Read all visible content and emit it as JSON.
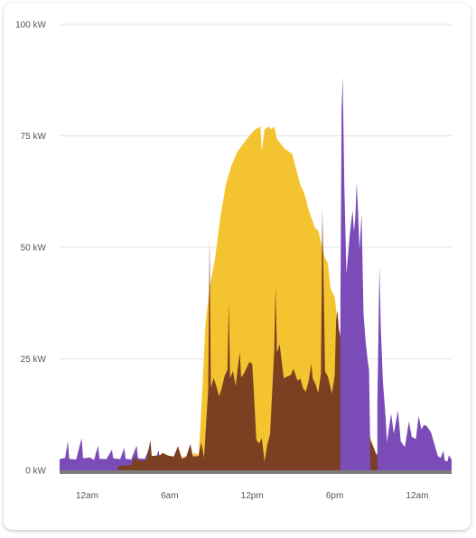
{
  "chart_data": {
    "type": "area",
    "title": "",
    "xlabel": "",
    "ylabel": "",
    "unit": "kW",
    "ylim": [
      0,
      100
    ],
    "xlim": [
      -2.0,
      26.5
    ],
    "x_unit": "hours (0 = first midnight shown)",
    "grid": true,
    "legend": "none",
    "y_ticks": [
      {
        "value": 0,
        "label": "0 kW"
      },
      {
        "value": 25,
        "label": "25 kW"
      },
      {
        "value": 50,
        "label": "50 kW"
      },
      {
        "value": 75,
        "label": "75 kW"
      },
      {
        "value": 100,
        "label": "100 kW"
      }
    ],
    "x_ticks": [
      {
        "value": 0,
        "label": "12am"
      },
      {
        "value": 6,
        "label": "6am"
      },
      {
        "value": 12,
        "label": "12pm"
      },
      {
        "value": 18,
        "label": "6pm"
      },
      {
        "value": 24,
        "label": "12am"
      }
    ],
    "series": [
      {
        "color": "#7b4bb8",
        "points": [
          [
            -2.0,
            2.5
          ],
          [
            -1.6,
            2.8
          ],
          [
            -1.4,
            6.5
          ],
          [
            -1.3,
            2.6
          ],
          [
            -0.8,
            2.4
          ],
          [
            -0.4,
            7.2
          ],
          [
            -0.3,
            2.7
          ],
          [
            0.2,
            2.9
          ],
          [
            0.5,
            2.3
          ],
          [
            0.8,
            5.5
          ],
          [
            0.9,
            2.6
          ],
          [
            1.4,
            2.5
          ],
          [
            1.8,
            4.6
          ],
          [
            1.9,
            2.7
          ],
          [
            2.4,
            2.5
          ],
          [
            2.7,
            5.0
          ],
          [
            2.8,
            2.6
          ],
          [
            3.2,
            2.4
          ],
          [
            3.6,
            5.5
          ],
          [
            3.7,
            2.7
          ],
          [
            4.2,
            2.6
          ],
          [
            4.5,
            4.8
          ],
          [
            4.6,
            2.5
          ],
          [
            5.0,
            2.7
          ],
          [
            5.2,
            4.5
          ],
          [
            5.3,
            2.3
          ],
          [
            5.6,
            2.2
          ],
          [
            6.0,
            0
          ],
          [
            20.2,
            0
          ],
          [
            20.9,
            2.2
          ],
          [
            21.3,
            5.3
          ],
          [
            21.5,
            4.0
          ],
          [
            21.8,
            6.3
          ],
          [
            22.1,
            12.7
          ],
          [
            22.3,
            8.2
          ],
          [
            22.6,
            13.4
          ],
          [
            22.8,
            6.5
          ],
          [
            23.1,
            5.2
          ],
          [
            23.4,
            11.0
          ],
          [
            23.6,
            7.5
          ],
          [
            23.9,
            7.0
          ],
          [
            24.1,
            12.2
          ],
          [
            24.3,
            9.2
          ],
          [
            24.5,
            10.2
          ],
          [
            24.7,
            9.9
          ],
          [
            25.0,
            8.5
          ],
          [
            25.3,
            5.3
          ],
          [
            25.5,
            3.2
          ],
          [
            25.7,
            2.8
          ],
          [
            25.9,
            4.4
          ],
          [
            26.0,
            2.2
          ],
          [
            26.2,
            2.0
          ],
          [
            26.3,
            3.4
          ],
          [
            26.5,
            2.4
          ]
        ]
      },
      {
        "color": "#f4c430",
        "points": [
          [
            4.4,
            0
          ],
          [
            4.6,
            0.6
          ],
          [
            5.2,
            1.0
          ],
          [
            5.6,
            2.1
          ],
          [
            6.0,
            2.7
          ],
          [
            6.3,
            2.0
          ],
          [
            6.5,
            3.0
          ],
          [
            6.8,
            2.3
          ],
          [
            7.0,
            3.1
          ],
          [
            7.3,
            3.2
          ],
          [
            7.6,
            2.6
          ],
          [
            7.8,
            4.0
          ],
          [
            8.1,
            3.4
          ],
          [
            8.25,
            10.5
          ],
          [
            8.6,
            32.3
          ],
          [
            8.9,
            41.0
          ],
          [
            9.3,
            47.5
          ],
          [
            9.7,
            57.0
          ],
          [
            10.1,
            64.3
          ],
          [
            10.5,
            68.4
          ],
          [
            10.9,
            71.3
          ],
          [
            11.3,
            73.0
          ],
          [
            11.8,
            75.0
          ],
          [
            12.2,
            76.4
          ],
          [
            12.6,
            77.1
          ],
          [
            12.7,
            71.6
          ],
          [
            12.9,
            76.4
          ],
          [
            13.2,
            77.1
          ],
          [
            13.4,
            76.5
          ],
          [
            13.6,
            77.1
          ],
          [
            13.8,
            74.3
          ],
          [
            14.4,
            72.0
          ],
          [
            14.9,
            71.0
          ],
          [
            15.5,
            64.0
          ],
          [
            15.7,
            62.8
          ],
          [
            15.9,
            61.0
          ],
          [
            16.1,
            58.4
          ],
          [
            16.6,
            54.2
          ],
          [
            16.8,
            53.8
          ],
          [
            17.0,
            51.2
          ],
          [
            17.3,
            47.5
          ],
          [
            17.5,
            46.5
          ],
          [
            17.7,
            40.8
          ],
          [
            18.0,
            38.8
          ],
          [
            18.3,
            30.8
          ],
          [
            18.6,
            27.0
          ],
          [
            18.9,
            25.8
          ],
          [
            19.4,
            19.4
          ],
          [
            19.8,
            15.0
          ],
          [
            20.2,
            11.0
          ],
          [
            20.6,
            7.4
          ],
          [
            21.0,
            3.8
          ],
          [
            21.3,
            1.6
          ],
          [
            21.6,
            0.6
          ],
          [
            21.8,
            0
          ]
        ]
      },
      {
        "color": "#7b3f22",
        "points": [
          [
            2.2,
            0
          ],
          [
            2.3,
            1.0
          ],
          [
            3.2,
            1.2
          ],
          [
            3.5,
            3.2
          ],
          [
            3.7,
            2.1
          ],
          [
            4.3,
            2.2
          ],
          [
            4.6,
            6.7
          ],
          [
            4.7,
            3.2
          ],
          [
            5.3,
            3.4
          ],
          [
            5.5,
            3.9
          ],
          [
            5.9,
            3.3
          ],
          [
            6.3,
            3.1
          ],
          [
            6.6,
            5.4
          ],
          [
            6.9,
            2.6
          ],
          [
            7.2,
            3.0
          ],
          [
            7.5,
            5.9
          ],
          [
            7.7,
            3.1
          ],
          [
            8.1,
            3.2
          ],
          [
            8.3,
            6.3
          ],
          [
            8.5,
            2.8
          ],
          [
            8.8,
            18.0
          ],
          [
            8.9,
            52.0
          ],
          [
            9.0,
            18.5
          ],
          [
            9.2,
            20.7
          ],
          [
            9.4,
            18.8
          ],
          [
            9.6,
            16.6
          ],
          [
            9.8,
            18.6
          ],
          [
            10.0,
            21.2
          ],
          [
            10.2,
            22.5
          ],
          [
            10.3,
            37.6
          ],
          [
            10.4,
            20.6
          ],
          [
            10.6,
            22.3
          ],
          [
            10.8,
            18.9
          ],
          [
            11.0,
            24.2
          ],
          [
            11.1,
            26.5
          ],
          [
            11.2,
            20.8
          ],
          [
            11.4,
            21.7
          ],
          [
            11.6,
            23.0
          ],
          [
            11.8,
            24.3
          ],
          [
            12.0,
            23.9
          ],
          [
            12.1,
            18.8
          ],
          [
            12.3,
            6.8
          ],
          [
            12.5,
            6.0
          ],
          [
            12.7,
            7.2
          ],
          [
            12.9,
            1.9
          ],
          [
            13.1,
            5.7
          ],
          [
            13.3,
            8.1
          ],
          [
            13.6,
            26.8
          ],
          [
            13.7,
            41.4
          ],
          [
            13.8,
            26.4
          ],
          [
            14.0,
            28.3
          ],
          [
            14.3,
            20.6
          ],
          [
            14.5,
            21.0
          ],
          [
            14.8,
            21.3
          ],
          [
            15.0,
            22.8
          ],
          [
            15.3,
            20.1
          ],
          [
            15.5,
            20.6
          ],
          [
            15.7,
            18.4
          ],
          [
            15.9,
            17.6
          ],
          [
            16.1,
            19.9
          ],
          [
            16.3,
            23.9
          ],
          [
            16.4,
            20.6
          ],
          [
            16.6,
            19.4
          ],
          [
            16.8,
            17.3
          ],
          [
            17.0,
            21.6
          ],
          [
            17.1,
            59.0
          ],
          [
            17.3,
            22.1
          ],
          [
            17.5,
            21.1
          ],
          [
            17.8,
            17.2
          ],
          [
            18.0,
            21.3
          ],
          [
            18.1,
            33.5
          ],
          [
            18.2,
            35.9
          ],
          [
            18.3,
            31.8
          ],
          [
            18.6,
            26.9
          ],
          [
            19.0,
            20.7
          ],
          [
            19.4,
            16.2
          ],
          [
            19.8,
            12.8
          ],
          [
            20.2,
            9.9
          ],
          [
            20.6,
            6.7
          ],
          [
            21.0,
            3.8
          ],
          [
            21.3,
            1.7
          ],
          [
            21.6,
            0.6
          ],
          [
            21.8,
            0
          ]
        ]
      },
      {
        "color": "#7b4bb8",
        "points": [
          [
            18.4,
            0
          ],
          [
            18.4,
            29.5
          ],
          [
            18.5,
            80.5
          ],
          [
            18.58,
            88.3
          ],
          [
            18.7,
            64.1
          ],
          [
            18.85,
            44.0
          ],
          [
            19.1,
            53.0
          ],
          [
            19.2,
            55.7
          ],
          [
            19.3,
            58.2
          ],
          [
            19.4,
            53.5
          ],
          [
            19.5,
            56.7
          ],
          [
            19.6,
            64.6
          ],
          [
            19.7,
            58.3
          ],
          [
            19.8,
            49.4
          ],
          [
            19.95,
            57.4
          ],
          [
            20.1,
            35.0
          ],
          [
            20.25,
            28.9
          ],
          [
            20.4,
            24.6
          ],
          [
            20.5,
            22.5
          ],
          [
            20.6,
            0
          ]
        ]
      },
      {
        "color": "#7b4bb8",
        "points": [
          [
            21.1,
            0
          ],
          [
            21.1,
            15.0
          ],
          [
            21.25,
            45.8
          ],
          [
            21.35,
            32.0
          ],
          [
            21.5,
            20.0
          ],
          [
            21.7,
            12.0
          ],
          [
            21.9,
            0
          ]
        ]
      }
    ]
  }
}
